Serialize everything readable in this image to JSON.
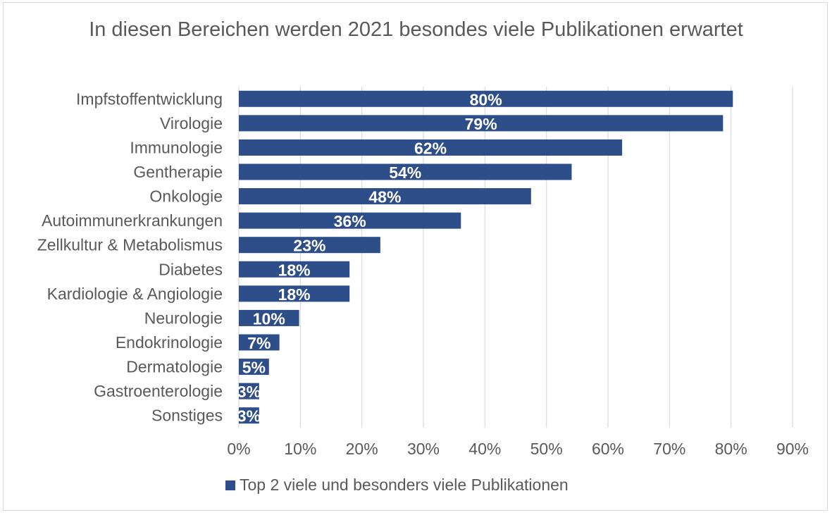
{
  "chart_data": {
    "type": "bar",
    "orientation": "horizontal",
    "title": "In diesen Bereichen werden 2021 besondes viele Publikationen erwartet",
    "categories": [
      "Impfstoffentwicklung",
      "Virologie",
      "Immunologie",
      "Gentherapie",
      "Onkologie",
      "Autoimmunerkrankungen",
      "Zellkultur & Metabolismus",
      "Diabetes",
      "Kardiologie & Angiologie",
      "Neurologie",
      "Endokrinologie",
      "Dermatologie",
      "Gastroenterologie",
      "Sonstiges"
    ],
    "series": [
      {
        "name": "Top 2 viele und besonders viele Publikationen",
        "values": [
          80.3,
          78.7,
          62.3,
          54.1,
          47.5,
          36.1,
          23.0,
          18.0,
          18.0,
          9.8,
          6.6,
          4.9,
          3.3,
          3.3
        ],
        "labels": [
          "80%",
          "79%",
          "62%",
          "54%",
          "48%",
          "36%",
          "23%",
          "18%",
          "18%",
          "10%",
          "7%",
          "5%",
          "3%",
          "3%"
        ]
      }
    ],
    "xlim": [
      0,
      90
    ],
    "xticks": [
      "0%",
      "10%",
      "20%",
      "30%",
      "40%",
      "50%",
      "60%",
      "70%",
      "80%",
      "90%"
    ],
    "grid": true,
    "legend": "bottom",
    "colors": {
      "bar": "#2e4e8a",
      "grid": "#d9d9d9",
      "text": "#595959",
      "label": "#ffffff"
    }
  }
}
